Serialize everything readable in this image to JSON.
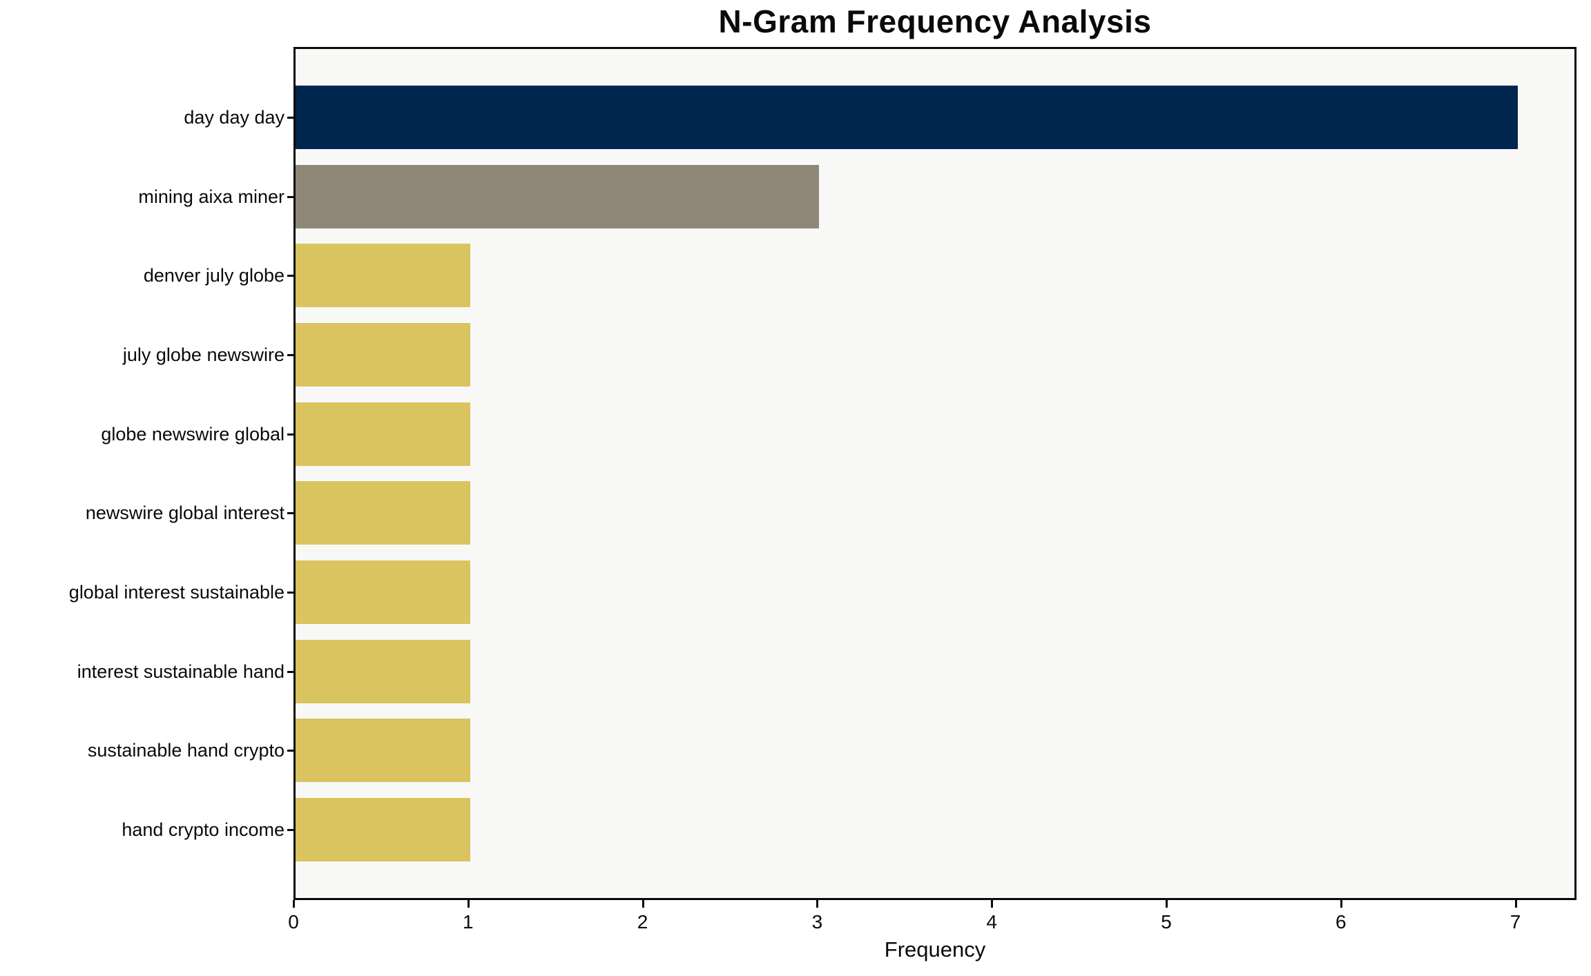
{
  "chart_data": {
    "type": "bar",
    "orientation": "horizontal",
    "title": "N-Gram Frequency Analysis",
    "xlabel": "Frequency",
    "ylabel": "",
    "categories": [
      "day day day",
      "mining aixa miner",
      "denver july globe",
      "july globe newswire",
      "globe newswire global",
      "newswire global interest",
      "global interest sustainable",
      "interest sustainable hand",
      "sustainable hand crypto",
      "hand crypto income"
    ],
    "values": [
      7,
      3,
      1,
      1,
      1,
      1,
      1,
      1,
      1,
      1
    ],
    "bar_colors": [
      "#00254e",
      "#8f8878",
      "#d9c45f",
      "#d9c45f",
      "#d9c45f",
      "#d9c45f",
      "#d9c45f",
      "#d9c45f",
      "#d9c45f",
      "#d9c45f"
    ],
    "xlim": [
      0,
      7.35
    ],
    "xticks": [
      0,
      1,
      2,
      3,
      4,
      5,
      6,
      7
    ],
    "grid": false,
    "legend_position": "none"
  },
  "colors": {
    "figure_bg": "#ffffff",
    "plot_bg": "#f8f8f6",
    "spine": "#0a0a0a",
    "text": "#0a0a0a"
  }
}
